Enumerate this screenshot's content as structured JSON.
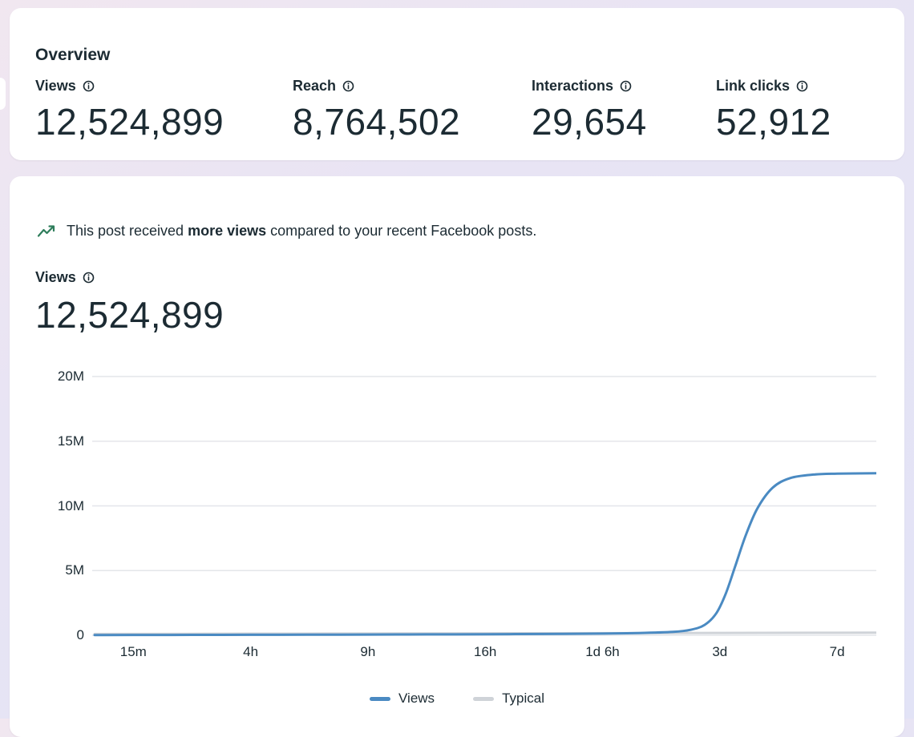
{
  "colors": {
    "text_primary": "#1c2b33",
    "accent_views": "#4a8ac2",
    "typical_gray": "#cfd3d8",
    "trend_icon": "#2e7d5b",
    "gridline": "#e4e6ea"
  },
  "overview": {
    "title": "Overview",
    "metrics": [
      {
        "label": "Views",
        "value": "12,524,899"
      },
      {
        "label": "Reach",
        "value": "8,764,502"
      },
      {
        "label": "Interactions",
        "value": "29,654"
      },
      {
        "label": "Link clicks",
        "value": "52,912"
      }
    ]
  },
  "post_insight": {
    "prefix": "This post received ",
    "highlight": "more views",
    "suffix": " compared to your recent Facebook posts.",
    "metric_label": "Views",
    "metric_value": "12,524,899"
  },
  "chart_data": {
    "type": "line",
    "title": "",
    "xlabel": "",
    "ylabel": "",
    "x_tick_labels": [
      "15m",
      "4h",
      "9h",
      "16h",
      "1d 6h",
      "3d",
      "7d"
    ],
    "y_tick_labels": [
      "20M",
      "15M",
      "10M",
      "5M",
      "0"
    ],
    "y_tick_values": [
      20000000,
      15000000,
      10000000,
      5000000,
      0
    ],
    "ylim": [
      0,
      20000000
    ],
    "grid": "horizontal",
    "gridline_color": "#e4e6ea",
    "legend_position": "bottom",
    "x_scale_note": "points use fractional x-tick index positions",
    "series": [
      {
        "name": "Views",
        "color": "#4a8ac2",
        "points": [
          [
            -0.33,
            15000
          ],
          [
            0,
            20000
          ],
          [
            0.5,
            28000
          ],
          [
            1,
            36000
          ],
          [
            1.5,
            45000
          ],
          [
            2,
            55000
          ],
          [
            2.5,
            66000
          ],
          [
            3,
            80000
          ],
          [
            3.5,
            100000
          ],
          [
            4,
            130000
          ],
          [
            4.3,
            170000
          ],
          [
            4.6,
            260000
          ],
          [
            4.75,
            420000
          ],
          [
            4.87,
            800000
          ],
          [
            4.97,
            1700000
          ],
          [
            5.05,
            3200000
          ],
          [
            5.13,
            5300000
          ],
          [
            5.22,
            7700000
          ],
          [
            5.32,
            9800000
          ],
          [
            5.45,
            11400000
          ],
          [
            5.6,
            12150000
          ],
          [
            5.8,
            12420000
          ],
          [
            6.0,
            12490000
          ],
          [
            6.33,
            12524899
          ]
        ]
      },
      {
        "name": "Typical",
        "color": "#cfd3d8",
        "points": [
          [
            -0.33,
            100000
          ],
          [
            1,
            120000
          ],
          [
            2,
            135000
          ],
          [
            3,
            150000
          ],
          [
            4,
            165000
          ],
          [
            5,
            180000
          ],
          [
            6,
            195000
          ],
          [
            6.33,
            200000
          ]
        ]
      }
    ]
  }
}
